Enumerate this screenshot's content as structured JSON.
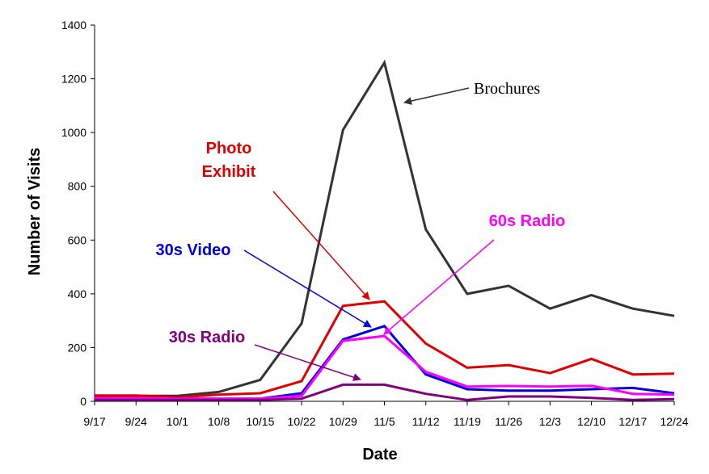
{
  "chart_data": {
    "type": "line",
    "xlabel": "Date",
    "ylabel": "Number of Visits",
    "ylim": [
      0,
      1400
    ],
    "yticks": [
      0,
      200,
      400,
      600,
      800,
      1000,
      1200,
      1400
    ],
    "grid": false,
    "categories": [
      "9/17",
      "9/24",
      "10/1",
      "10/8",
      "10/15",
      "10/22",
      "10/29",
      "11/5",
      "11/12",
      "11/19",
      "11/26",
      "12/3",
      "12/10",
      "12/17",
      "12/24"
    ],
    "series": [
      {
        "name": "Brochures",
        "color": "#333333",
        "values": [
          20,
          20,
          20,
          35,
          80,
          290,
          1010,
          1260,
          640,
          400,
          430,
          345,
          395,
          345,
          318
        ]
      },
      {
        "name": "Photo Exhibit",
        "color": "#e00000",
        "values": [
          22,
          22,
          15,
          25,
          30,
          75,
          355,
          372,
          215,
          125,
          135,
          105,
          158,
          100,
          103
        ]
      },
      {
        "name": "30s Video",
        "color": "#0000dd",
        "values": [
          10,
          10,
          10,
          10,
          10,
          30,
          230,
          280,
          100,
          45,
          40,
          40,
          45,
          50,
          30
        ]
      },
      {
        "name": "60s Radio",
        "color": "#ff00ff",
        "values": [
          12,
          12,
          10,
          10,
          10,
          20,
          225,
          243,
          110,
          55,
          57,
          55,
          58,
          28,
          25
        ]
      },
      {
        "name": "30s Radio",
        "color": "#800080",
        "values": [
          5,
          5,
          5,
          5,
          5,
          10,
          62,
          62,
          28,
          5,
          18,
          18,
          13,
          5,
          8
        ]
      }
    ],
    "annotations": [
      {
        "id": "brochures",
        "lines": [
          "Brochures"
        ],
        "series": "Brochures",
        "color": "#000000",
        "arrow_color": "#333333"
      },
      {
        "id": "photo",
        "lines": [
          "Photo",
          "Exhibit"
        ],
        "series": "Photo Exhibit",
        "color": "#e00000",
        "arrow_color": "#e00000"
      },
      {
        "id": "video",
        "lines": [
          "30s Video"
        ],
        "series": "30s Video",
        "color": "#0000dd",
        "arrow_color": "#0000dd"
      },
      {
        "id": "radio60",
        "lines": [
          "60s Radio"
        ],
        "series": "60s Radio",
        "color": "#ff00ff",
        "arrow_color": "#ff00ff"
      },
      {
        "id": "radio30",
        "lines": [
          "30s Radio"
        ],
        "series": "30s Radio",
        "color": "#800080",
        "arrow_color": "#800080"
      }
    ]
  }
}
